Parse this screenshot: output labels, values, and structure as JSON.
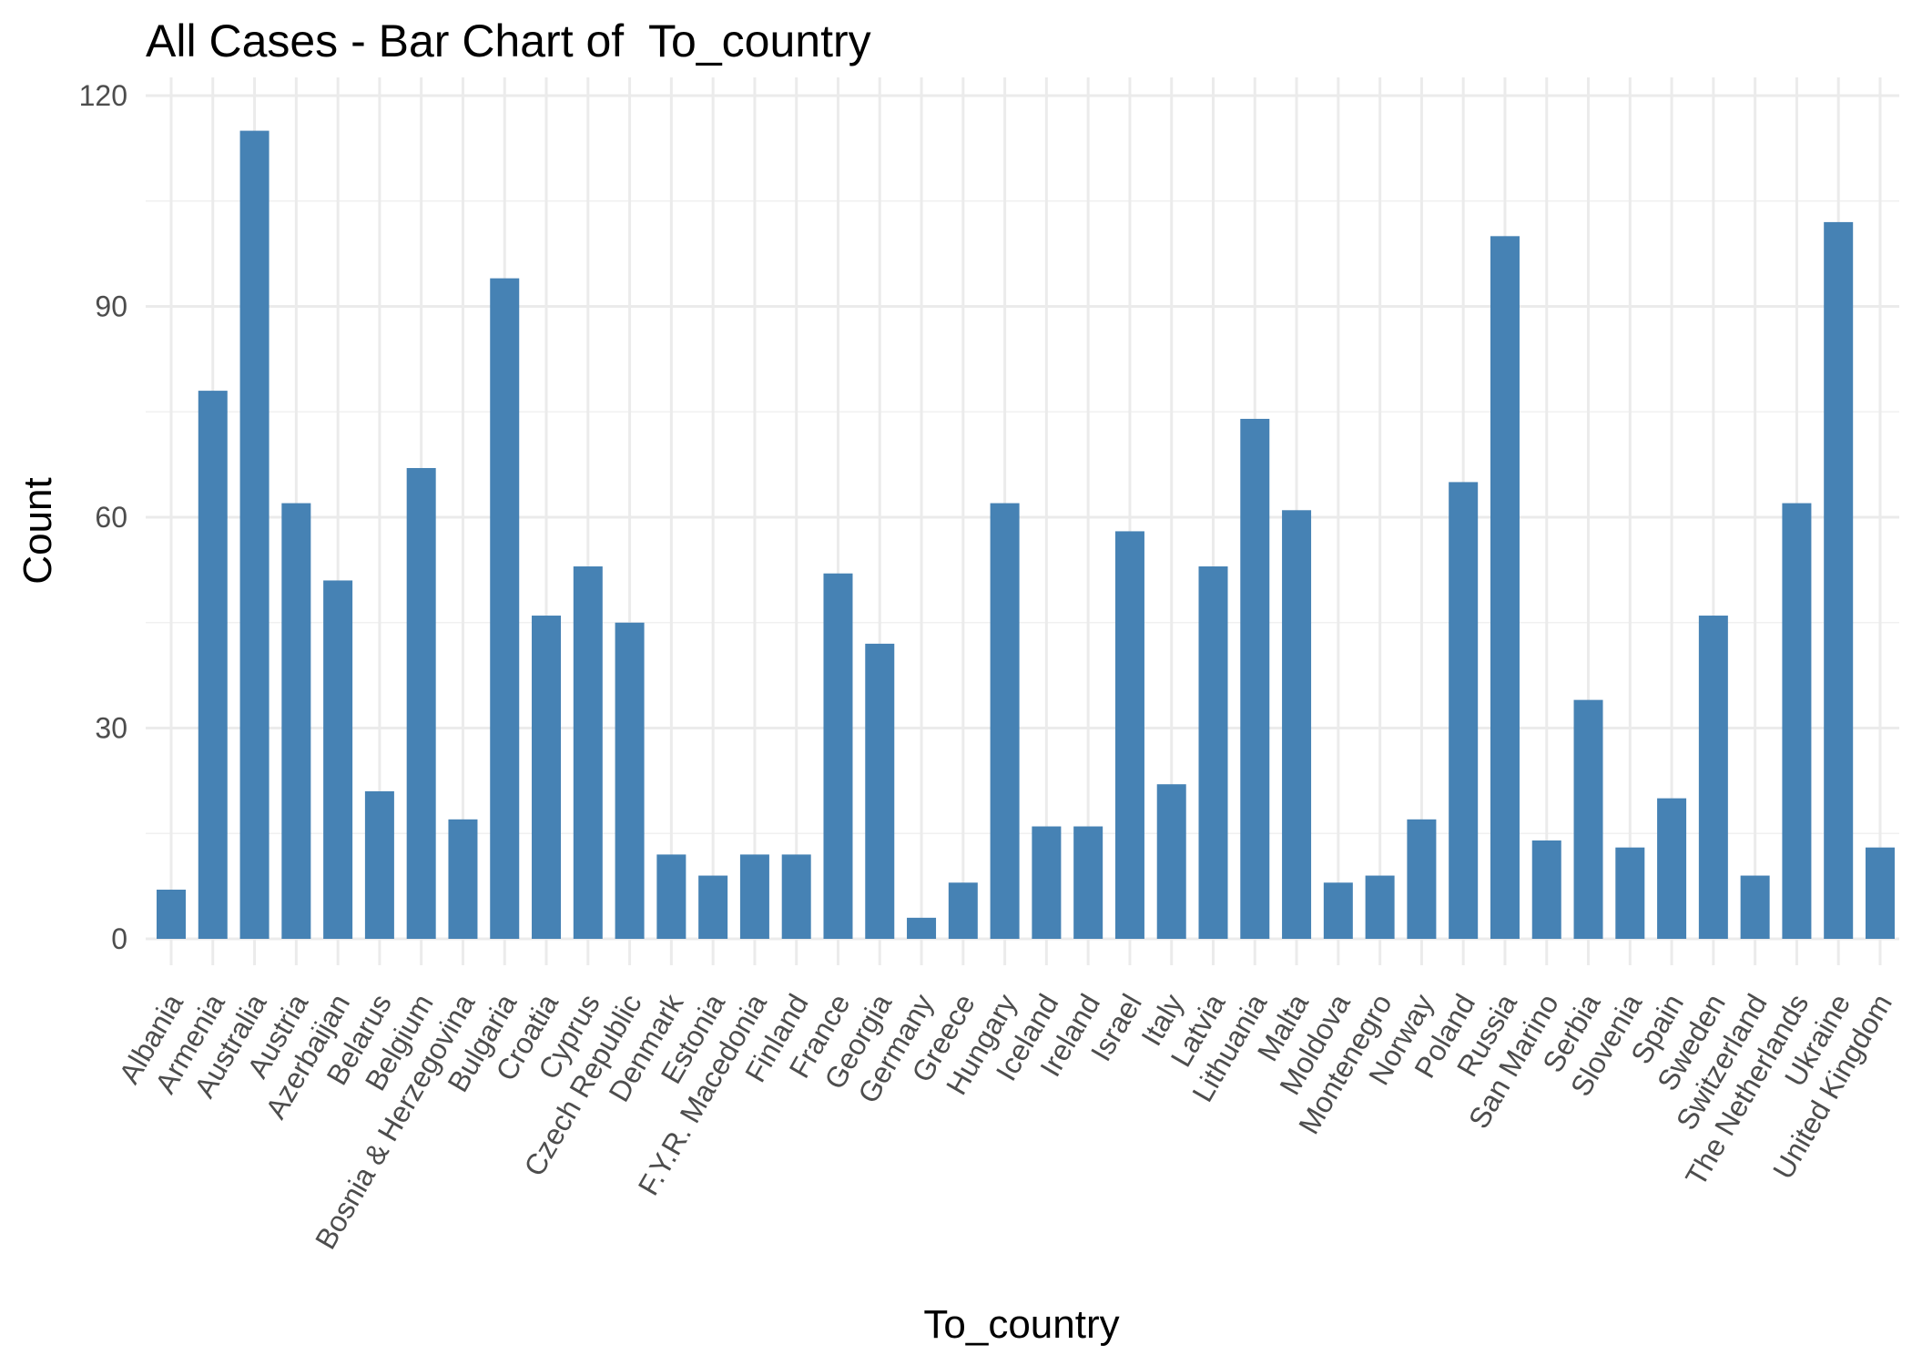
{
  "chart_data": {
    "type": "bar",
    "title": "All Cases - Bar Chart of  To_country",
    "xlabel": "To_country",
    "ylabel": "Count",
    "ylim": [
      0,
      120
    ],
    "yticks": [
      0,
      30,
      60,
      90,
      120
    ],
    "grid": true,
    "legend": "none",
    "bar_color": "#4682B4",
    "categories": [
      "Albania",
      "Armenia",
      "Australia",
      "Austria",
      "Azerbaijan",
      "Belarus",
      "Belgium",
      "Bosnia & Herzegovina",
      "Bulgaria",
      "Croatia",
      "Cyprus",
      "Czech Republic",
      "Denmark",
      "Estonia",
      "F.Y.R. Macedonia",
      "Finland",
      "France",
      "Georgia",
      "Germany",
      "Greece",
      "Hungary",
      "Iceland",
      "Ireland",
      "Israel",
      "Italy",
      "Latvia",
      "Lithuania",
      "Malta",
      "Moldova",
      "Montenegro",
      "Norway",
      "Poland",
      "Russia",
      "San Marino",
      "Serbia",
      "Slovenia",
      "Spain",
      "Sweden",
      "Switzerland",
      "The Netherlands",
      "Ukraine",
      "United Kingdom"
    ],
    "values": [
      7,
      78,
      115,
      62,
      51,
      21,
      67,
      17,
      94,
      46,
      53,
      45,
      12,
      9,
      12,
      12,
      52,
      42,
      3,
      8,
      62,
      16,
      16,
      58,
      22,
      53,
      74,
      61,
      8,
      9,
      17,
      65,
      100,
      14,
      34,
      13,
      20,
      46,
      9,
      62,
      102,
      13
    ]
  }
}
